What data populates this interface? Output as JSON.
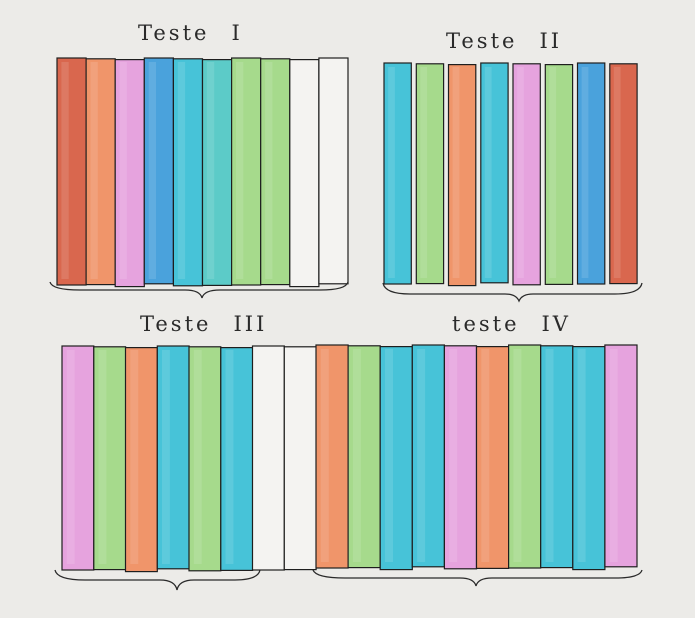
{
  "titles": {
    "test1": {
      "word": "Teste",
      "numeral": "I"
    },
    "test2": {
      "word": "Teste",
      "numeral": "II"
    },
    "test3": {
      "word": "Teste",
      "numeral": "III"
    },
    "test4": {
      "word": "teste",
      "numeral": "IV"
    }
  },
  "colors": {
    "red": "#d9674e",
    "orange": "#f0956a",
    "pink": "#e6a3de",
    "blue": "#4aa2dc",
    "cyan": "#47c3d8",
    "teal": "#5ccbc8",
    "green": "#a6da8c",
    "white": "#f4f3f1",
    "line": "#1e1e1e"
  },
  "groups": [
    {
      "name": "teste-1",
      "stripes": [
        "red",
        "orange",
        "pink",
        "blue",
        "cyan",
        "teal",
        "green",
        "green",
        "white",
        "white"
      ]
    },
    {
      "name": "teste-2",
      "stripes": [
        "cyan",
        "green",
        "orange",
        "cyan",
        "pink",
        "green",
        "blue",
        "red"
      ]
    },
    {
      "name": "teste-3",
      "stripes": [
        "pink",
        "green",
        "orange",
        "cyan",
        "green",
        "cyan",
        "white",
        "white"
      ]
    },
    {
      "name": "teste-4",
      "stripes": [
        "orange",
        "green",
        "cyan",
        "cyan",
        "pink",
        "orange",
        "green",
        "cyan",
        "cyan",
        "pink"
      ]
    }
  ]
}
